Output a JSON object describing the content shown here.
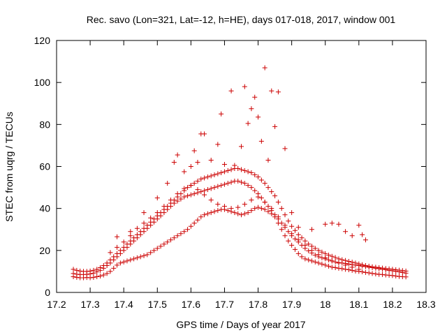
{
  "chart_data": {
    "type": "scatter",
    "title": "Rec. savo (Lon=321, Lat=-12, h=HE), days 017-018, 2017, window 001",
    "xlabel": "GPS time / Days of year 2017",
    "ylabel": "STEC from uqrg / TECUs",
    "xlim": [
      17.2,
      18.3
    ],
    "ylim": [
      0,
      120
    ],
    "xticks": [
      "17.2",
      "17.3",
      "17.4",
      "17.5",
      "17.6",
      "17.7",
      "17.8",
      "17.9",
      "18",
      "18.1",
      "18.2",
      "18.3"
    ],
    "yticks": [
      "0",
      "20",
      "40",
      "60",
      "80",
      "100",
      "120"
    ],
    "grid": false,
    "legend": "none",
    "marker": "plus",
    "color": "#cc0000",
    "series": [
      {
        "x": [
          17.25,
          17.26,
          17.27,
          17.28,
          17.29,
          17.3,
          17.31,
          17.32,
          17.33,
          17.34,
          17.35,
          17.36,
          17.37,
          17.38,
          17.39,
          17.4,
          17.41,
          17.42,
          17.43,
          17.44,
          17.45,
          17.46,
          17.47,
          17.48,
          17.49,
          17.5,
          17.51,
          17.52,
          17.53,
          17.54,
          17.55,
          17.56,
          17.57,
          17.58,
          17.59,
          17.6,
          17.61,
          17.62,
          17.63,
          17.64,
          17.65,
          17.66,
          17.67,
          17.68,
          17.69,
          17.7,
          17.71,
          17.72,
          17.73,
          17.74,
          17.75,
          17.76,
          17.77,
          17.78,
          17.79,
          17.8,
          17.81,
          17.82,
          17.83,
          17.84,
          17.85,
          17.86,
          17.87,
          17.88,
          17.89,
          17.9,
          17.91,
          17.92,
          17.93,
          17.94,
          17.95,
          17.96,
          17.97,
          17.98,
          17.99,
          18.0,
          18.01,
          18.02,
          18.03,
          18.04,
          18.05,
          18.06,
          18.07,
          18.08,
          18.09,
          18.1,
          18.11,
          18.12,
          18.13,
          18.14,
          18.15,
          18.16,
          18.17,
          18.18,
          18.19,
          18.2,
          18.21,
          18.22,
          18.23,
          18.24
        ],
        "y": [
          7.5,
          7.2,
          7.0,
          7.0,
          7.1,
          7.0,
          7.2,
          7.5,
          7.8,
          8.3,
          9.0,
          10.0,
          11.5,
          13.0,
          14.0,
          14.5,
          15.0,
          15.5,
          16.0,
          16.5,
          17.0,
          17.5,
          18.0,
          19.0,
          20.0,
          21.0,
          22.0,
          23.0,
          24.0,
          25.0,
          26.0,
          27.0,
          28.0,
          29.0,
          30.0,
          31.5,
          33.0,
          34.5,
          36.0,
          37.0,
          37.5,
          38.0,
          38.5,
          39.0,
          39.5,
          39.5,
          39.0,
          38.5,
          38.0,
          37.5,
          37.0,
          37.5,
          38.0,
          39.0,
          40.0,
          40.5,
          40.0,
          39.5,
          38.5,
          37.5,
          36.0,
          33.0,
          30.0,
          27.0,
          24.5,
          22.5,
          20.5,
          18.5,
          17.0,
          16.0,
          15.5,
          15.0,
          14.5,
          14.0,
          13.5,
          13.0,
          12.5,
          12.0,
          11.8,
          11.5,
          11.3,
          11.0,
          10.8,
          10.5,
          10.2,
          10.0,
          9.8,
          9.5,
          9.3,
          9.0,
          8.8,
          8.6,
          8.5,
          8.3,
          8.2,
          8.0,
          7.8,
          7.6,
          7.5,
          7.4
        ]
      },
      {
        "x": [
          17.25,
          17.26,
          17.27,
          17.28,
          17.29,
          17.3,
          17.31,
          17.32,
          17.33,
          17.34,
          17.35,
          17.36,
          17.37,
          17.38,
          17.39,
          17.4,
          17.41,
          17.42,
          17.43,
          17.44,
          17.45,
          17.46,
          17.47,
          17.48,
          17.49,
          17.5,
          17.51,
          17.52,
          17.53,
          17.54,
          17.55,
          17.56,
          17.57,
          17.58,
          17.59,
          17.6,
          17.61,
          17.62,
          17.63,
          17.64,
          17.65,
          17.66,
          17.67,
          17.68,
          17.69,
          17.7,
          17.71,
          17.72,
          17.73,
          17.74,
          17.75,
          17.76,
          17.77,
          17.78,
          17.79,
          17.8,
          17.81,
          17.82,
          17.83,
          17.84,
          17.85,
          17.86,
          17.87,
          17.88,
          17.89,
          17.9,
          17.91,
          17.92,
          17.93,
          17.94,
          17.95,
          17.96,
          17.97,
          17.98,
          17.99,
          18.0,
          18.01,
          18.02,
          18.03,
          18.04,
          18.05,
          18.06,
          18.07,
          18.08,
          18.09,
          18.1,
          18.11,
          18.12,
          18.13,
          18.14,
          18.15,
          18.16,
          18.17,
          18.18,
          18.19,
          18.2,
          18.21,
          18.22,
          18.23,
          18.24
        ],
        "y": [
          9.0,
          8.7,
          8.5,
          8.5,
          8.6,
          8.8,
          9.2,
          9.8,
          10.5,
          11.5,
          12.8,
          14.0,
          15.5,
          17.0,
          18.5,
          20.0,
          21.5,
          23.0,
          24.5,
          26.0,
          27.5,
          29.0,
          30.5,
          32.0,
          33.5,
          35.0,
          36.5,
          38.0,
          39.5,
          41.0,
          42.5,
          43.5,
          44.5,
          45.5,
          46.0,
          46.5,
          47.0,
          47.5,
          48.0,
          48.5,
          49.0,
          49.5,
          50.0,
          50.5,
          51.0,
          51.5,
          52.0,
          52.5,
          53.0,
          53.0,
          52.5,
          52.0,
          51.0,
          50.0,
          48.5,
          47.0,
          45.0,
          43.0,
          41.0,
          39.0,
          37.0,
          35.0,
          33.0,
          31.0,
          29.0,
          27.0,
          25.5,
          24.0,
          22.5,
          21.0,
          19.8,
          18.8,
          17.8,
          17.0,
          16.5,
          16.0,
          15.5,
          15.0,
          14.5,
          14.2,
          14.0,
          13.8,
          13.5,
          13.2,
          13.0,
          12.8,
          12.5,
          12.3,
          12.0,
          11.8,
          11.5,
          11.3,
          11.0,
          10.8,
          10.5,
          10.3,
          10.0,
          9.8,
          9.5,
          9.2
        ]
      },
      {
        "x": [
          17.25,
          17.26,
          17.27,
          17.28,
          17.29,
          17.3,
          17.31,
          17.32,
          17.33,
          17.34,
          17.35,
          17.36,
          17.37,
          17.38,
          17.39,
          17.4,
          17.41,
          17.42,
          17.43,
          17.44,
          17.45,
          17.46,
          17.47,
          17.48,
          17.49,
          17.5,
          17.51,
          17.52,
          17.53,
          17.54,
          17.55,
          17.56,
          17.57,
          17.58,
          17.59,
          17.6,
          17.61,
          17.62,
          17.63,
          17.64,
          17.65,
          17.66,
          17.67,
          17.68,
          17.69,
          17.7,
          17.71,
          17.72,
          17.73,
          17.74,
          17.75,
          17.76,
          17.77,
          17.78,
          17.79,
          17.8,
          17.81,
          17.82,
          17.83,
          17.84,
          17.85,
          17.86,
          17.87,
          17.88,
          17.89,
          17.9,
          17.91,
          17.92,
          17.93,
          17.94,
          17.95,
          17.96,
          17.97,
          17.98,
          17.99,
          18.0,
          18.01,
          18.02,
          18.03,
          18.04,
          18.05,
          18.06,
          18.07,
          18.08,
          18.09,
          18.1,
          18.11,
          18.12,
          18.13,
          18.14,
          18.15,
          18.16,
          18.17,
          18.18,
          18.19,
          18.2,
          18.21,
          18.22,
          18.23,
          18.24
        ],
        "y": [
          11.0,
          10.5,
          10.2,
          10.0,
          10.0,
          10.2,
          10.5,
          11.0,
          11.8,
          12.8,
          14.0,
          15.5,
          17.0,
          18.5,
          20.0,
          21.5,
          23.0,
          24.5,
          26.0,
          27.5,
          29.0,
          30.5,
          32.0,
          33.5,
          35.0,
          36.5,
          38.0,
          39.5,
          41.0,
          42.5,
          44.0,
          45.5,
          47.0,
          48.5,
          50.0,
          51.0,
          52.0,
          53.0,
          54.0,
          54.5,
          55.0,
          55.5,
          56.0,
          56.5,
          57.0,
          57.5,
          58.0,
          58.5,
          59.0,
          59.0,
          58.5,
          58.0,
          57.5,
          57.0,
          56.0,
          55.0,
          53.5,
          52.0,
          50.0,
          48.0,
          46.0,
          43.0,
          40.0,
          37.0,
          34.0,
          31.5,
          29.5,
          27.5,
          26.0,
          24.5,
          23.0,
          22.0,
          21.0,
          20.0,
          19.2,
          18.5,
          17.8,
          17.2,
          16.6,
          16.0,
          15.6,
          15.2,
          14.8,
          14.4,
          14.0,
          13.6,
          13.2,
          12.8,
          12.5,
          12.2,
          12.0,
          11.8,
          11.6,
          11.4,
          11.2,
          11.0,
          10.8,
          10.6,
          10.4,
          10.2
        ]
      },
      {
        "x": [
          17.36,
          17.38,
          17.4,
          17.42,
          17.44,
          17.46,
          17.48,
          17.5,
          17.52,
          17.54,
          17.56,
          17.58,
          17.6,
          17.62,
          17.64,
          17.66,
          17.68,
          17.7,
          17.72,
          17.74,
          17.76,
          17.78,
          17.8,
          17.82,
          17.84,
          17.86,
          17.88,
          17.9,
          17.92,
          17.94,
          17.96,
          17.98,
          18.0,
          18.02,
          18.04,
          18.06,
          18.08,
          18.1
        ],
        "y": [
          19.0,
          21.5,
          24.0,
          27.0,
          30.5,
          33.0,
          35.5,
          38.0,
          41.0,
          44.0,
          47.0,
          49.5,
          51.0,
          49.0,
          46.5,
          44.0,
          42.0,
          41.0,
          40.0,
          40.5,
          42.0,
          44.0,
          45.5,
          43.0,
          40.0,
          36.0,
          32.0,
          28.0,
          25.0,
          22.5,
          20.0,
          18.0,
          16.5,
          15.0,
          14.0,
          13.0,
          12.0,
          11.0
        ]
      },
      {
        "x": [
          17.38,
          17.42,
          17.46,
          17.5,
          17.53,
          17.55,
          17.56,
          17.58,
          17.6,
          17.61,
          17.62,
          17.63,
          17.64,
          17.66,
          17.68,
          17.69,
          17.7,
          17.72,
          17.73,
          17.75,
          17.76,
          17.77,
          17.78,
          17.79,
          17.8,
          17.81,
          17.82,
          17.83,
          17.84,
          17.85,
          17.86,
          17.88,
          17.9,
          17.92,
          17.96,
          18.0,
          18.02,
          18.04,
          18.06,
          18.08,
          18.1,
          18.11,
          18.12
        ],
        "y": [
          26.5,
          29.0,
          38.0,
          45.0,
          52.0,
          62.0,
          65.5,
          57.5,
          60.0,
          67.5,
          62.0,
          75.5,
          75.5,
          63.0,
          70.5,
          85.0,
          61.0,
          96.0,
          60.5,
          69.5,
          98.0,
          80.5,
          87.5,
          93.0,
          83.5,
          72.0,
          107.0,
          63.0,
          96.0,
          79.0,
          95.5,
          68.5,
          38.0,
          31.0,
          30.0,
          32.5,
          33.0,
          32.5,
          29.0,
          27.0,
          32.0,
          27.5,
          25.0
        ]
      }
    ]
  }
}
